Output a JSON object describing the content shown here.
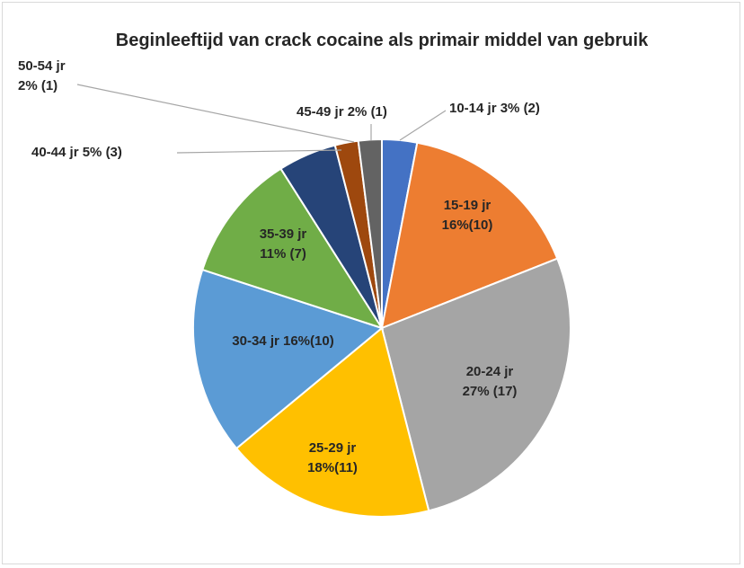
{
  "chart_data": {
    "type": "pie",
    "title": "Beginleeftijd van crack cocaine als primair middel van gebruik",
    "categories": [
      "10-14 jr",
      "15-19 jr",
      "20-24 jr",
      "25-29 jr",
      "30-34 jr",
      "35-39 jr",
      "40-44 jr",
      "45-49 jr",
      "50-54 jr"
    ],
    "values": [
      3,
      16,
      27,
      18,
      16,
      11,
      5,
      2,
      2
    ],
    "value_labels": [
      "3% (2)",
      "16%(10)",
      "27% (17)",
      "18%(11)",
      "16%(10)",
      "11% (7)",
      "5% (3)",
      "2%  (1)",
      "2% (1)"
    ],
    "colors": [
      "#4472c4",
      "#ed7d31",
      "#a5a5a5",
      "#ffc000",
      "#5b9bd5",
      "#70ad47",
      "#264478",
      "#9e480e",
      "#636363"
    ]
  }
}
